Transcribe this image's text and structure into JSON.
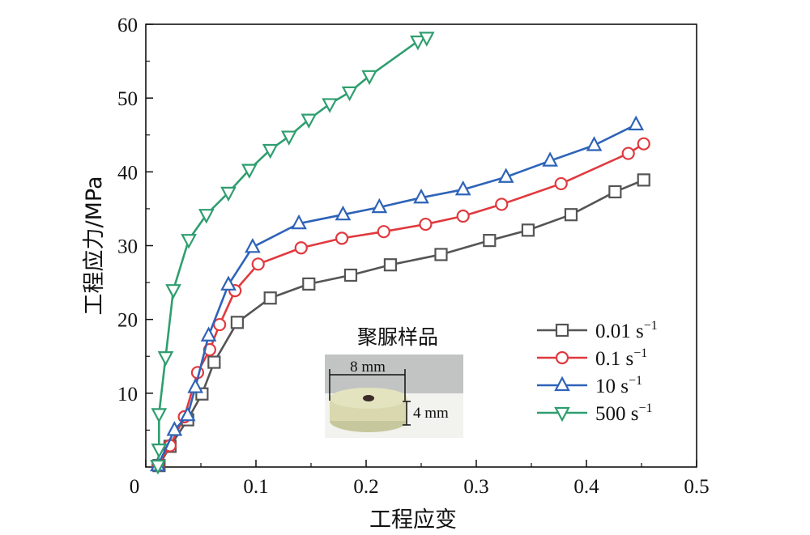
{
  "chart_data": {
    "type": "line",
    "xlabel": "工程应变",
    "ylabel": "工程应力/MPa",
    "xlim": [
      0,
      0.5
    ],
    "ylim": [
      0,
      60
    ],
    "xticks": [
      "0",
      "0.1",
      "0.2",
      "0.3",
      "0.4",
      "0.5"
    ],
    "yticks": [
      "10",
      "20",
      "30",
      "40",
      "50",
      "60"
    ],
    "grid": false,
    "legend_position": "right",
    "series": [
      {
        "name": "0.01 s",
        "name_sup": "−1",
        "marker": "square",
        "color": "#555555",
        "x": [
          0.012,
          0.022,
          0.038,
          0.051,
          0.062,
          0.083,
          0.113,
          0.148,
          0.186,
          0.222,
          0.268,
          0.312,
          0.347,
          0.386,
          0.426,
          0.452
        ],
        "y": [
          0.2,
          2.8,
          6.4,
          9.9,
          14.2,
          19.6,
          22.9,
          24.8,
          26.0,
          27.4,
          28.8,
          30.7,
          32.1,
          34.2,
          37.3,
          38.9
        ]
      },
      {
        "name": "0.1 s",
        "name_sup": "−1",
        "marker": "circle",
        "color": "#e0393e",
        "x": [
          0.011,
          0.022,
          0.035,
          0.047,
          0.058,
          0.067,
          0.081,
          0.102,
          0.141,
          0.178,
          0.216,
          0.254,
          0.288,
          0.323,
          0.377,
          0.438,
          0.452
        ],
        "y": [
          0.2,
          2.9,
          6.8,
          12.8,
          15.9,
          19.3,
          23.9,
          27.5,
          29.7,
          31.0,
          31.9,
          32.9,
          34.0,
          35.6,
          38.4,
          42.5,
          43.8
        ]
      },
      {
        "name": "10 s",
        "name_sup": "−1",
        "marker": "triangle-up",
        "color": "#2e63b8",
        "x": [
          0.011,
          0.026,
          0.038,
          0.045,
          0.057,
          0.075,
          0.097,
          0.139,
          0.179,
          0.212,
          0.25,
          0.288,
          0.327,
          0.367,
          0.407,
          0.445
        ],
        "y": [
          0.2,
          5.0,
          7.0,
          10.8,
          17.8,
          24.7,
          29.8,
          33.0,
          34.2,
          35.2,
          36.5,
          37.6,
          39.3,
          41.5,
          43.6,
          46.4
        ]
      },
      {
        "name": "500 s",
        "name_sup": "−1",
        "marker": "triangle-down",
        "color": "#2f9e6f",
        "x": [
          0.011,
          0.012,
          0.012,
          0.018,
          0.025,
          0.039,
          0.055,
          0.075,
          0.094,
          0.113,
          0.13,
          0.148,
          0.167,
          0.185,
          0.203,
          0.247,
          0.255
        ],
        "y": [
          0.2,
          2.4,
          7.2,
          14.9,
          24.0,
          30.8,
          34.2,
          37.2,
          40.3,
          43.0,
          44.8,
          47.1,
          49.2,
          50.8,
          53.0,
          57.7,
          58.2
        ]
      }
    ],
    "inset": {
      "title": "聚脲样品",
      "width_label": "8 mm",
      "height_label": "4 mm"
    }
  }
}
